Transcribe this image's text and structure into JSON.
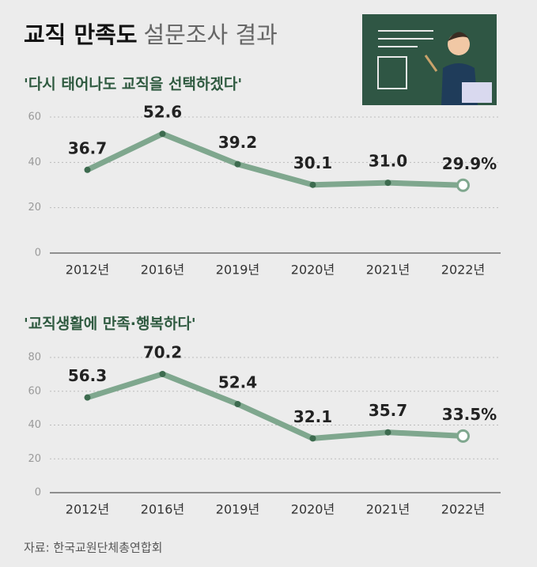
{
  "header": {
    "title": "교직 만족도",
    "subtitle": "설문조사 결과"
  },
  "chart_data": [
    {
      "type": "line",
      "title": "'다시 태어나도 교직을 선택하겠다'",
      "categories": [
        "2012년",
        "2016년",
        "2019년",
        "2020년",
        "2021년",
        "2022년"
      ],
      "values": [
        36.7,
        52.6,
        39.2,
        30.1,
        31.0,
        29.9
      ],
      "value_labels": [
        "36.7",
        "52.6",
        "39.2",
        "30.1",
        "31.0",
        "29.9%"
      ],
      "color": "#7fa78e",
      "ylim": [
        0,
        60
      ],
      "yticks": [
        0,
        20,
        40,
        60
      ],
      "grid": true
    },
    {
      "type": "line",
      "title": "'교직생활에 만족·행복하다'",
      "categories": [
        "2012년",
        "2016년",
        "2019년",
        "2020년",
        "2021년",
        "2022년"
      ],
      "values": [
        56.3,
        70.2,
        52.4,
        32.1,
        35.7,
        33.5
      ],
      "value_labels": [
        "56.3",
        "70.2",
        "52.4",
        "32.1",
        "35.7",
        "33.5%"
      ],
      "color": "#7fa78e",
      "ylim": [
        0,
        80
      ],
      "yticks": [
        0,
        20,
        40,
        60,
        80
      ],
      "grid": true
    }
  ],
  "source": "자료: 한국교원단체총연합회"
}
